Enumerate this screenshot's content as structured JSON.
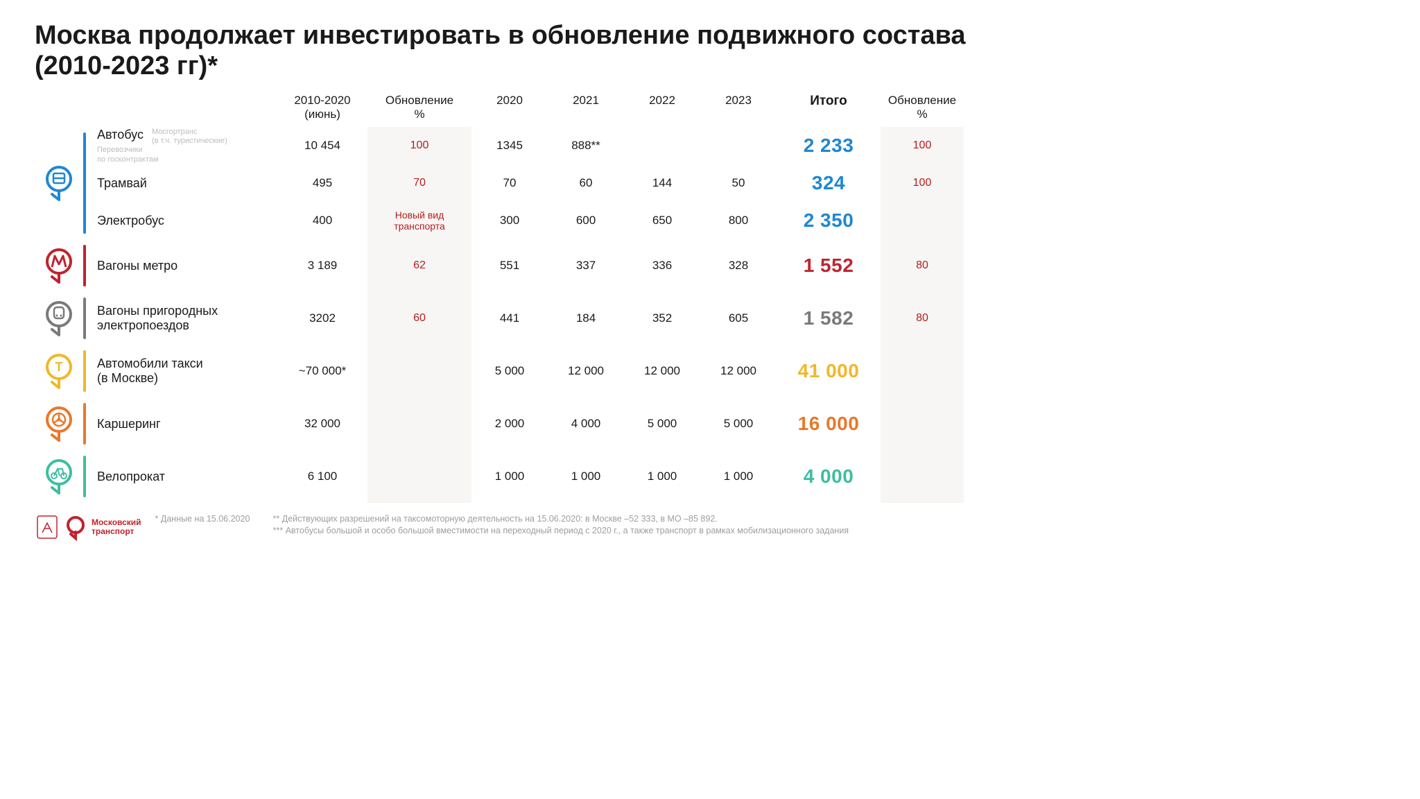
{
  "title": "Москва продолжает инвестировать в обновление подвижного состава (2010-2023 гг)*",
  "columns": {
    "c1": "2010-2020\n(июнь)",
    "c2": "Обновление\n%",
    "c3": "2020",
    "c4": "2021",
    "c5": "2022",
    "c6": "2023",
    "c7": "Итого",
    "c8": "Обновление\n%"
  },
  "colors": {
    "surface_blue": "#1f87d2",
    "metro_red": "#c0232e",
    "rail_grey": "#7a7a7a",
    "taxi_yellow": "#f0b828",
    "carshare_orange": "#e7792b",
    "bike_teal": "#3fbda0",
    "update_text": "#b71c1c",
    "upd_bg": "#f7f6f4",
    "subtext_grey": "#bdbdbd",
    "footer_grey": "#9e9e9e",
    "logo_red": "#c0232e"
  },
  "groups": [
    {
      "key": "surface",
      "icon": "bus",
      "color": "#1f87d2",
      "total_color": "#1f87d2",
      "rows": [
        {
          "label": "Автобус",
          "sub1": "Мосгортранс\n(в т.ч. туристические)",
          "sub2": "Перевозчики\nпо госконтрактам",
          "v2010": "10 454",
          "upd": "100",
          "v2020": "1345",
          "v2021": "888**",
          "v2022": "",
          "v2023": "",
          "total": "2 233",
          "upd2": "100"
        },
        {
          "label": "Трамвай",
          "v2010": "495",
          "upd": "70",
          "v2020": "70",
          "v2021": "60",
          "v2022": "144",
          "v2023": "50",
          "total": "324",
          "upd2": "100"
        },
        {
          "label": "Электробус",
          "v2010": "400",
          "upd": "Новый вид\nтранспорта",
          "upd_small": true,
          "v2020": "300",
          "v2021": "600",
          "v2022": "650",
          "v2023": "800",
          "total": "2 350",
          "upd2": ""
        }
      ]
    },
    {
      "key": "metro",
      "icon": "metro",
      "color": "#c0232e",
      "total_color": "#c0232e",
      "rows": [
        {
          "label": "Вагоны метро",
          "v2010": "3 189",
          "upd": "62",
          "v2020": "551",
          "v2021": "337",
          "v2022": "336",
          "v2023": "328",
          "total": "1 552",
          "upd2": "80"
        }
      ]
    },
    {
      "key": "rail",
      "icon": "rail",
      "color": "#7a7a7a",
      "total_color": "#7a7a7a",
      "rows": [
        {
          "label": "Вагоны пригородных\nэлектропоездов",
          "v2010": "3202",
          "upd": "60",
          "v2020": "441",
          "v2021": "184",
          "v2022": "352",
          "v2023": "605",
          "total": "1 582",
          "upd2": "80"
        }
      ]
    },
    {
      "key": "taxi",
      "icon": "taxi",
      "color": "#f0b828",
      "total_color": "#f0b828",
      "rows": [
        {
          "label": "Автомобили такси\n(в Москве)",
          "v2010": "~70 000*",
          "upd": "",
          "v2020": "5 000",
          "v2021": "12 000",
          "v2022": "12 000",
          "v2023": "12 000",
          "total": "41 000",
          "upd2": ""
        }
      ]
    },
    {
      "key": "carshare",
      "icon": "wheel",
      "color": "#e7792b",
      "total_color": "#e7792b",
      "rows": [
        {
          "label": "Каршеринг",
          "v2010": "32 000",
          "upd": "",
          "v2020": "2 000",
          "v2021": "4 000",
          "v2022": "5 000",
          "v2023": "5 000",
          "total": "16 000",
          "upd2": ""
        }
      ]
    },
    {
      "key": "bike",
      "icon": "bike",
      "color": "#3fbda0",
      "total_color": "#3fbda0",
      "rows": [
        {
          "label": "Велопрокат",
          "v2010": "6 100",
          "upd": "",
          "v2020": "1 000",
          "v2021": "1 000",
          "v2022": "1 000",
          "v2023": "1 000",
          "total": "4 000",
          "upd2": ""
        }
      ]
    }
  ],
  "footer": {
    "brand1": "Московский",
    "brand2": "транспорт",
    "fn1": "* Данные на 15.06.2020",
    "fn2a": "** Действующих разрешений на таксомоторную деятельность на 15.06.2020: в Москве –52 333, в МО –85 892.",
    "fn2b": "*** Автобусы большой и особо большой вместимости на переходный период с 2020 г.,  а также транспорт в рамках мобилизационного задания"
  }
}
